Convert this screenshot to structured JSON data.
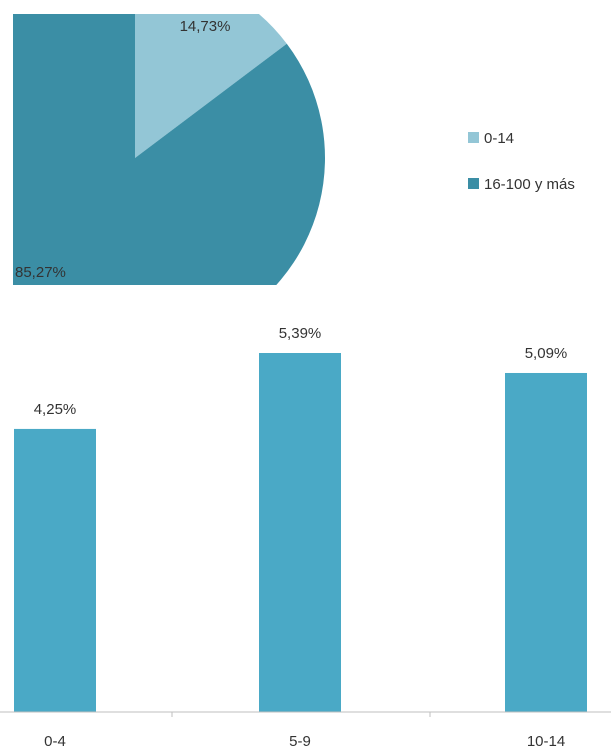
{
  "chart_data": [
    {
      "type": "pie",
      "labels": [
        "0-14",
        "16-100 y más"
      ],
      "values": [
        14.73,
        85.27
      ],
      "data_labels": [
        "14,73%",
        "85,27%"
      ],
      "colors": [
        "#93c6d6",
        "#3b8ea5"
      ],
      "legend": {
        "position": "right",
        "entries": [
          "0-14",
          "16-100 y más"
        ]
      }
    },
    {
      "type": "bar",
      "categories": [
        "0-4",
        "5-9",
        "10-14"
      ],
      "values": [
        4.25,
        5.39,
        5.09
      ],
      "data_labels": [
        "4,25%",
        "5,39%",
        "5,09%"
      ],
      "colors": [
        "#4aa9c6"
      ],
      "ylim": [
        0,
        6
      ],
      "grid": false
    }
  ]
}
